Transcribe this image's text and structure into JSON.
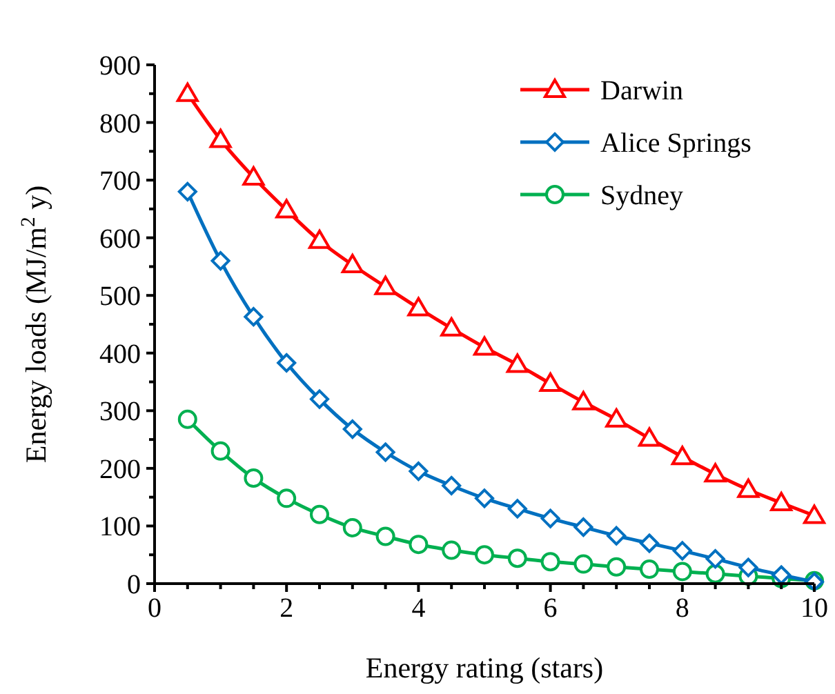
{
  "chart_data": {
    "type": "line",
    "xlabel": "Energy rating (stars)",
    "ylabel": "Energy loads (MJ/m$^{2}$ y)",
    "x": [
      0.5,
      1,
      1.5,
      2,
      2.5,
      3,
      3.5,
      4,
      4.5,
      5,
      5.5,
      6,
      6.5,
      7,
      7.5,
      8,
      8.5,
      9,
      9.5,
      10
    ],
    "series": [
      {
        "name": "Darwin",
        "color": "#ff0000",
        "marker": "triangle",
        "values": [
          850,
          770,
          705,
          648,
          595,
          553,
          515,
          478,
          443,
          410,
          380,
          347,
          315,
          285,
          252,
          220,
          190,
          163,
          140,
          118
        ]
      },
      {
        "name": "Alice Springs",
        "color": "#0070c0",
        "marker": "diamond",
        "values": [
          680,
          560,
          463,
          383,
          320,
          268,
          228,
          195,
          170,
          148,
          130,
          113,
          98,
          83,
          70,
          57,
          43,
          28,
          15,
          3
        ]
      },
      {
        "name": "Sydney",
        "color": "#00b050",
        "marker": "circle",
        "values": [
          285,
          230,
          183,
          148,
          120,
          97,
          82,
          68,
          58,
          50,
          44,
          38,
          34,
          29,
          25,
          21,
          17,
          13,
          9,
          5
        ]
      }
    ],
    "xlim": [
      0,
      10
    ],
    "xticks": [
      0,
      {
        "value": 0.5,
        "label": null
      },
      {
        "value": 1,
        "label": null
      },
      {
        "value": 1.5,
        "label": null
      },
      2,
      {
        "value": 2.5,
        "label": null
      },
      {
        "value": 3,
        "label": null
      },
      {
        "value": 3.5,
        "label": null
      },
      4,
      {
        "value": 4.5,
        "label": null
      },
      {
        "value": 5,
        "label": null
      },
      {
        "value": 5.5,
        "label": null
      },
      6,
      {
        "value": 6.5,
        "label": null
      },
      {
        "value": 7,
        "label": null
      },
      {
        "value": 7.5,
        "label": null
      },
      8,
      {
        "value": 8.5,
        "label": null
      },
      {
        "value": 9,
        "label": null
      },
      {
        "value": 9.5,
        "label": null
      },
      10
    ],
    "ylim": [
      0,
      900
    ],
    "yticks": [
      0,
      {
        "value": 50,
        "label": null
      },
      100,
      {
        "value": 150,
        "label": null
      },
      200,
      {
        "value": 250,
        "label": null
      },
      300,
      {
        "value": 350,
        "label": null
      },
      400,
      {
        "value": 450,
        "label": null
      },
      500,
      {
        "value": 550,
        "label": null
      },
      600,
      {
        "value": 650,
        "label": null
      },
      700,
      {
        "value": 750,
        "label": null
      },
      800,
      {
        "value": 850,
        "label": null
      },
      900
    ],
    "grid": false,
    "legend": "top right",
    "line_style": "solid"
  }
}
